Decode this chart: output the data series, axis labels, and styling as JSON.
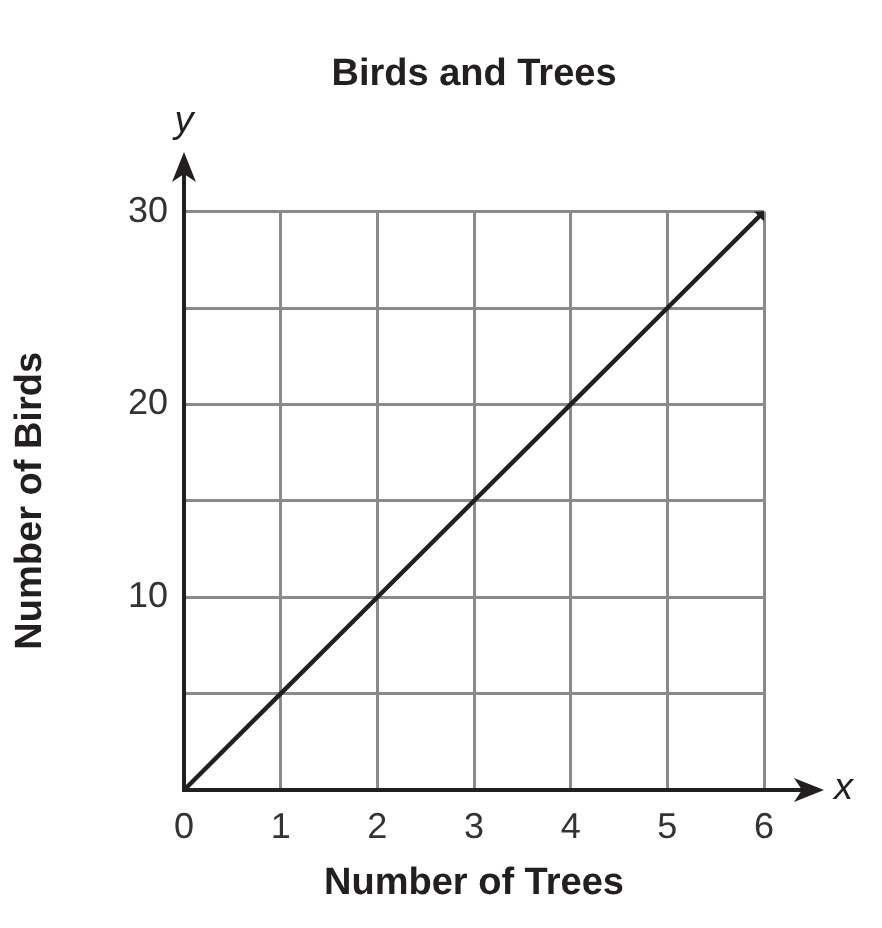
{
  "chart_data": {
    "type": "line",
    "title": "Birds and Trees",
    "xlabel": "Number of Trees",
    "ylabel": "Number of Birds",
    "x": [
      0,
      1,
      2,
      3,
      4,
      5,
      6
    ],
    "values": [
      0,
      5,
      10,
      15,
      20,
      25,
      30
    ],
    "color": "#231f20",
    "xlim": [
      0,
      6
    ],
    "ylim": [
      0,
      30
    ],
    "xticks": [
      0,
      1,
      2,
      3,
      4,
      5,
      6
    ],
    "yticks": [
      {
        "value": 0,
        "label": null
      },
      {
        "value": 5,
        "label": null
      },
      10,
      {
        "value": 15,
        "label": null
      },
      20,
      {
        "value": 25,
        "label": null
      },
      30
    ],
    "grid": true,
    "marker": "none",
    "line_style": "solid",
    "legend": false,
    "annotations": [
      "x",
      "y"
    ]
  }
}
